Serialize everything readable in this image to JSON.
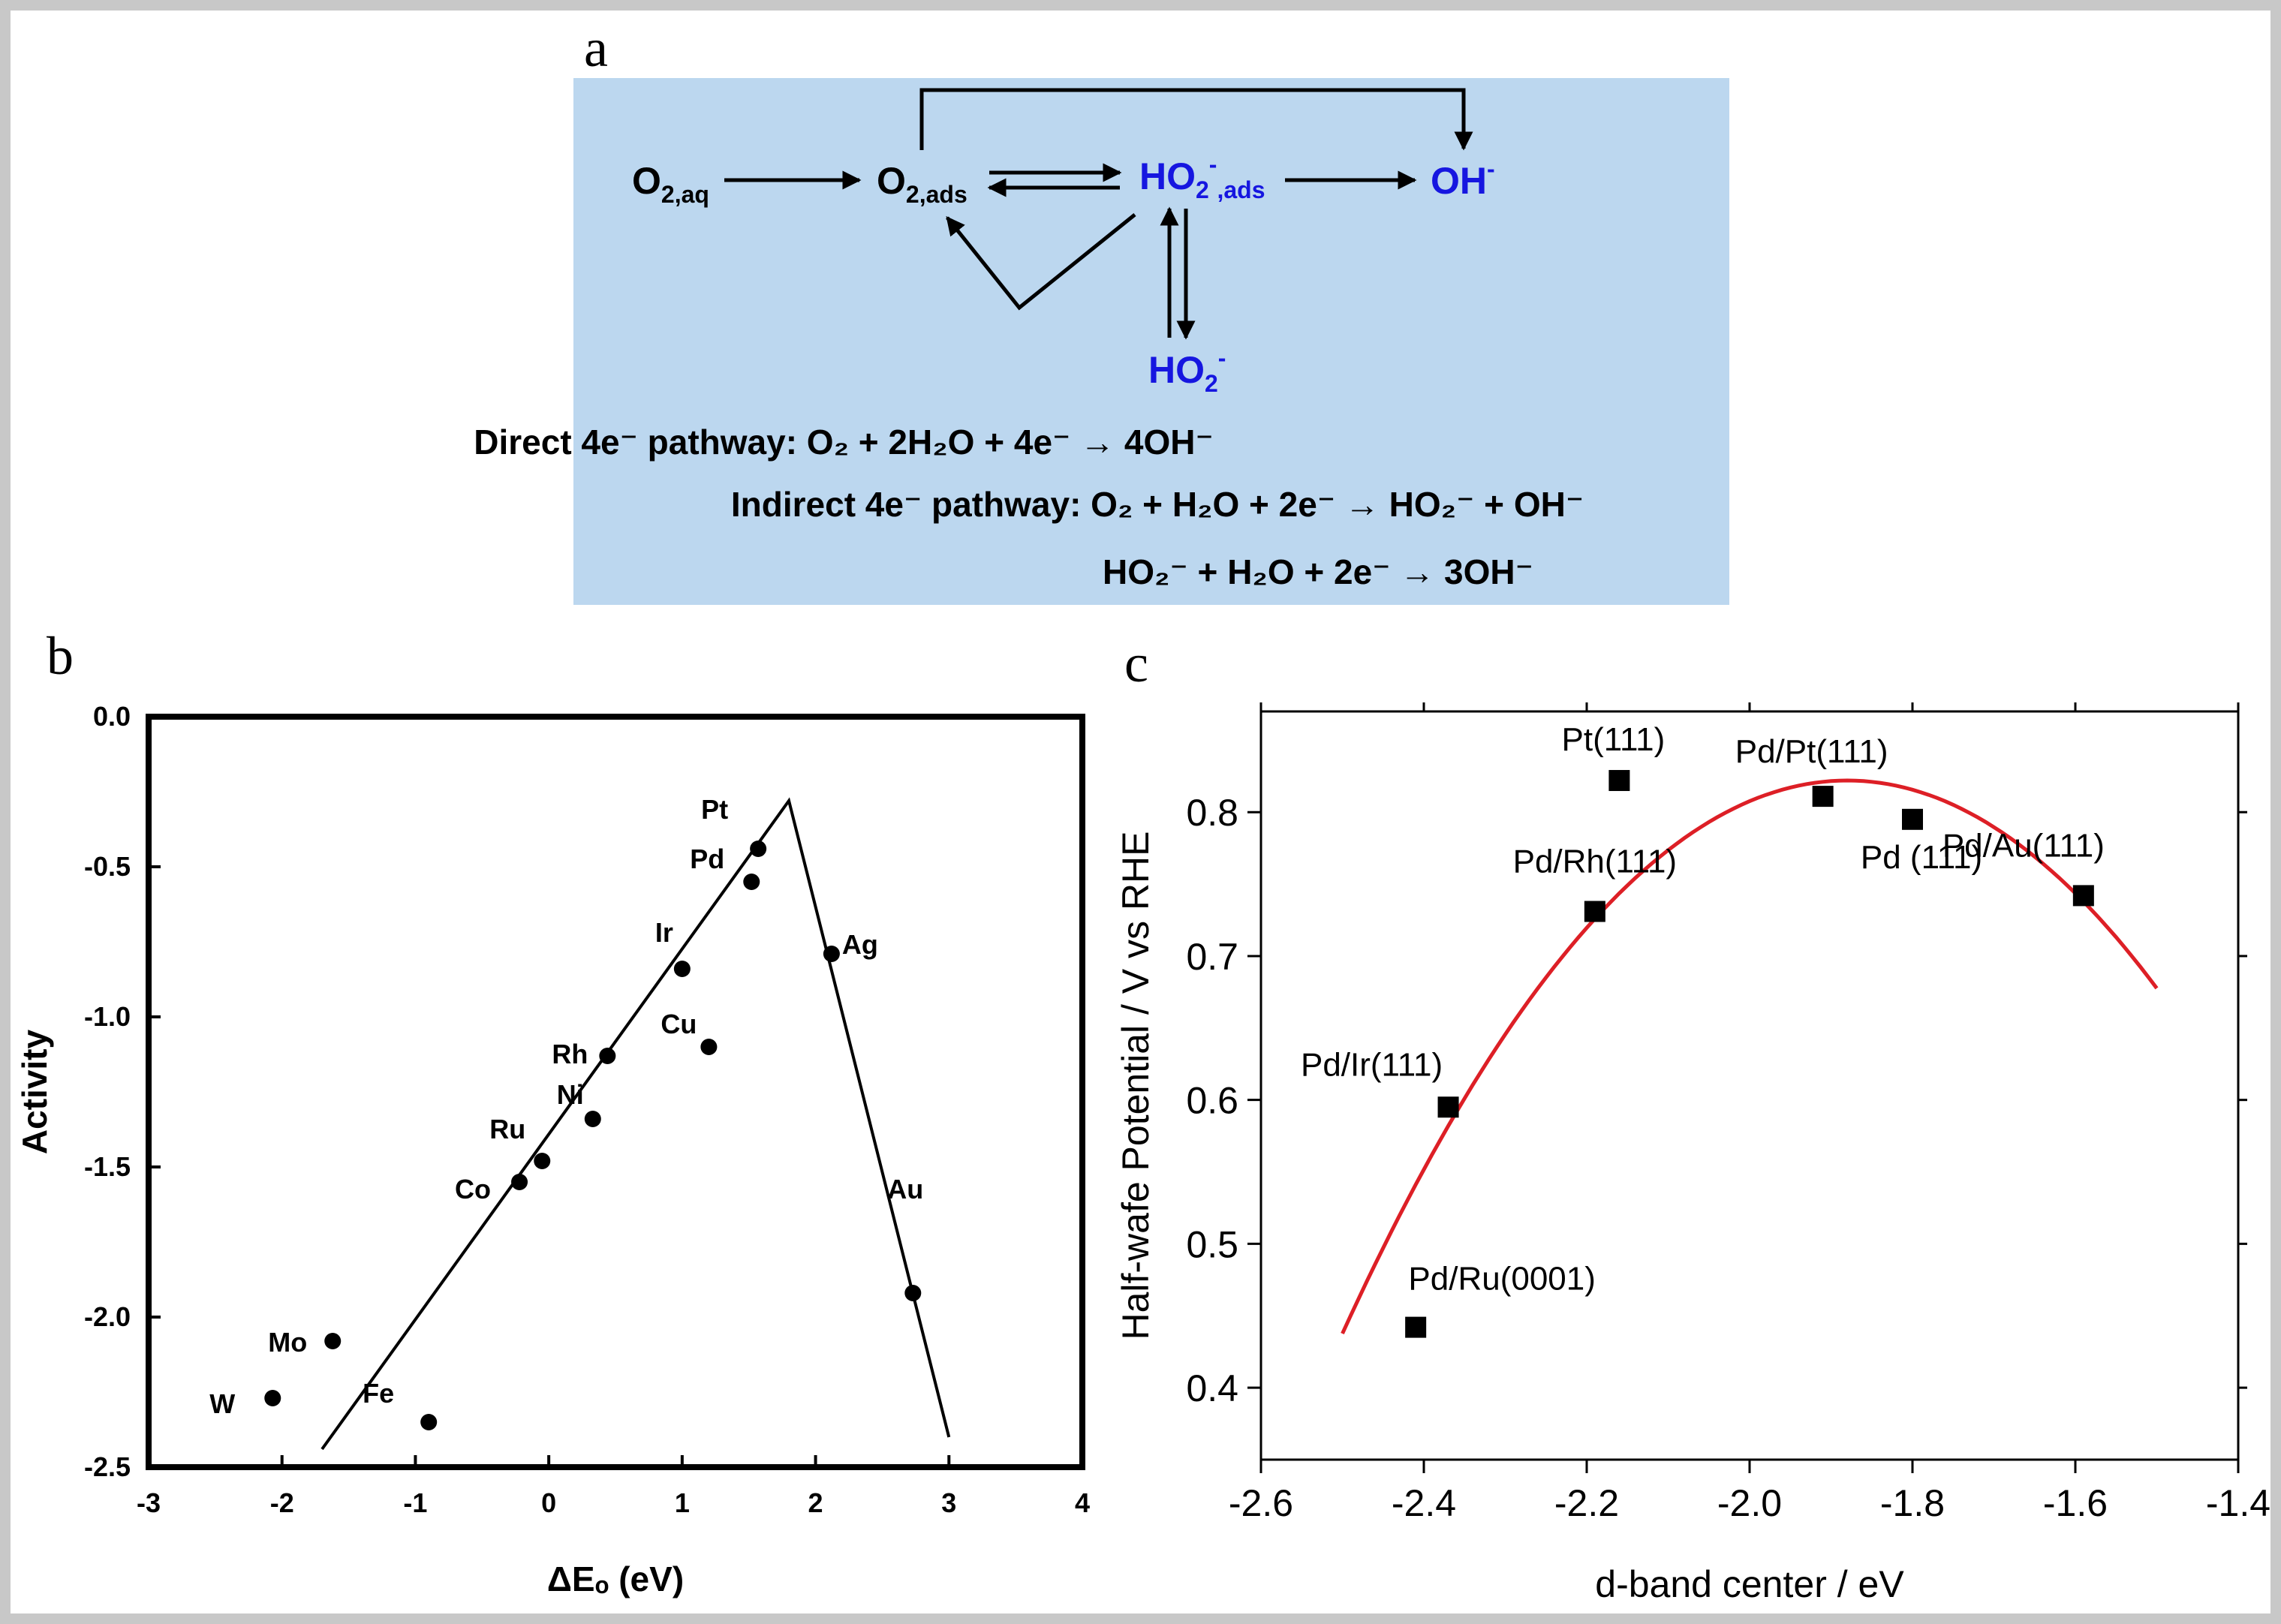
{
  "panels": {
    "a": {
      "label": "a",
      "species": {
        "o2_aq": {
          "main": "O",
          "sub": "2,aq"
        },
        "o2_ads": {
          "main": "O",
          "sub": "2,ads"
        },
        "ho2_ads": {
          "main": "HO",
          "sub": "2",
          "sup": "-",
          "sub2": ",ads"
        },
        "oh": {
          "main": "OH",
          "sup": "-"
        },
        "ho2": {
          "main": "HO",
          "sub": "2",
          "sup": "-"
        }
      },
      "equations": {
        "direct": "Direct 4e⁻ pathway: O₂ + 2H₂O + 4e⁻ → 4OH⁻",
        "indirect1": "Indirect 4e⁻ pathway: O₂ + H₂O + 2e⁻ → HO₂⁻ + OH⁻",
        "indirect2": "HO₂⁻ + H₂O + 2e⁻ → 3OH⁻"
      },
      "colors": {
        "background": "#bcd7ef",
        "highlight": "#1616e0"
      }
    },
    "b": {
      "label": "b"
    },
    "c": {
      "label": "c"
    }
  },
  "chart_data": [
    {
      "id": "b",
      "type": "scatter",
      "xlabel": "ΔEₒ (eV)",
      "ylabel": "Activity",
      "xlim": [
        -3,
        4
      ],
      "ylim": [
        -2.5,
        0.0
      ],
      "xticks": [
        "-3",
        "-2",
        "-1",
        "0",
        "1",
        "2",
        "3",
        "4"
      ],
      "yticks": [
        "0.0",
        "-0.5",
        "-1.0",
        "-1.5",
        "-2.0",
        "-2.5"
      ],
      "points": [
        {
          "label": "Pt",
          "x": 1.57,
          "y": -0.44
        },
        {
          "label": "Pd",
          "x": 1.52,
          "y": -0.55
        },
        {
          "label": "Ag",
          "x": 2.12,
          "y": -0.79
        },
        {
          "label": "Ir",
          "x": 1.0,
          "y": -0.84
        },
        {
          "label": "Cu",
          "x": 1.2,
          "y": -1.1
        },
        {
          "label": "Rh",
          "x": 0.44,
          "y": -1.13
        },
        {
          "label": "Ni",
          "x": 0.33,
          "y": -1.34
        },
        {
          "label": "Ru",
          "x": -0.05,
          "y": -1.48
        },
        {
          "label": "Co",
          "x": -0.22,
          "y": -1.55
        },
        {
          "label": "Au",
          "x": 2.73,
          "y": -1.92
        },
        {
          "label": "Mo",
          "x": -1.62,
          "y": -2.08
        },
        {
          "label": "W",
          "x": -2.07,
          "y": -2.27
        },
        {
          "label": "Fe",
          "x": -0.9,
          "y": -2.35
        }
      ],
      "volcano_line": [
        [
          -1.7,
          -2.44
        ],
        [
          1.8,
          -0.28
        ],
        [
          3.0,
          -2.4
        ]
      ]
    },
    {
      "id": "c",
      "type": "scatter",
      "xlabel": "d-band center / eV",
      "ylabel": "Half-wafe Potential / V vs RHE",
      "xlim": [
        -2.6,
        -1.4
      ],
      "ylim": [
        0.35,
        0.87
      ],
      "xticks": [
        "-2.6",
        "-2.4",
        "-2.2",
        "-2.0",
        "-1.8",
        "-1.6",
        "-1.4"
      ],
      "yticks": [
        "0.4",
        "0.5",
        "0.6",
        "0.7",
        "0.8"
      ],
      "points": [
        {
          "label": "Pt(111)",
          "x": -2.16,
          "y": 0.822
        },
        {
          "label": "Pd/Pt(111)",
          "x": -1.91,
          "y": 0.811
        },
        {
          "label": "Pd (111)",
          "x": -1.8,
          "y": 0.795
        },
        {
          "label": "Pd/Au(111)",
          "x": -1.59,
          "y": 0.742
        },
        {
          "label": "Pd/Rh(111)",
          "x": -2.19,
          "y": 0.731
        },
        {
          "label": "Pd/Ir(111)",
          "x": -2.37,
          "y": 0.595
        },
        {
          "label": "Pd/Ru(0001)",
          "x": -2.41,
          "y": 0.442
        }
      ],
      "fit_curve": {
        "vertex_x": -1.88,
        "vertex_y": 0.822,
        "a": -1.0,
        "x_range": [
          -2.5,
          -1.5
        ]
      },
      "colors": {
        "fit": "#dd1f26"
      }
    }
  ]
}
